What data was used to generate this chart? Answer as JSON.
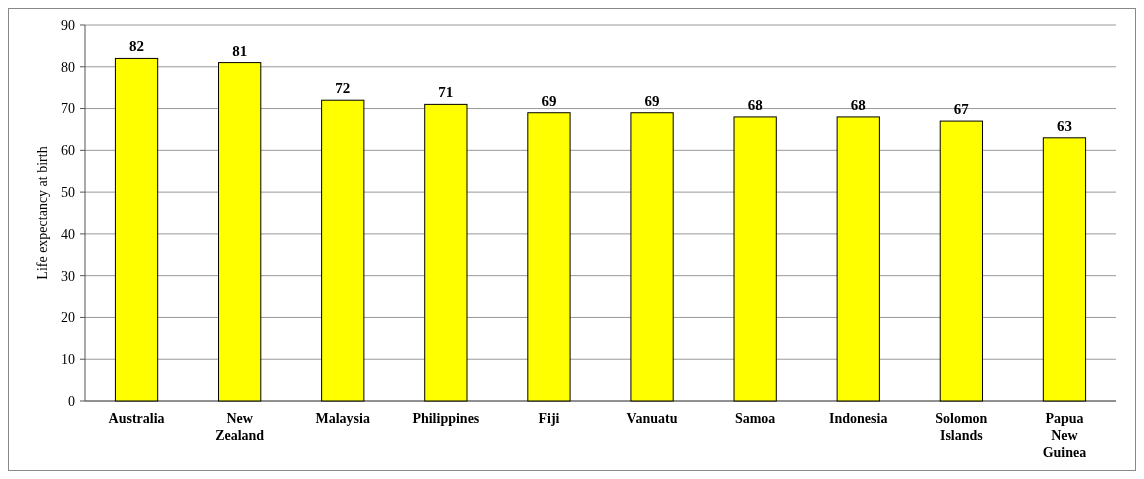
{
  "chart_data": {
    "type": "bar",
    "ylabel": "Life expectancy at birth",
    "categories": [
      "Australia",
      "New Zealand",
      "Malaysia",
      "Philippines",
      "Fiji",
      "Vanuatu",
      "Samoa",
      "Indonesia",
      "Solomon Islands",
      "Papua New Guinea"
    ],
    "values": [
      82,
      81,
      72,
      71,
      69,
      69,
      68,
      68,
      67,
      63
    ],
    "color": "#ffff00",
    "ylim": [
      0,
      90
    ],
    "yticks": [
      0,
      10,
      20,
      30,
      40,
      50,
      60,
      70,
      80,
      90
    ],
    "grid": "y",
    "data_labels": true
  }
}
